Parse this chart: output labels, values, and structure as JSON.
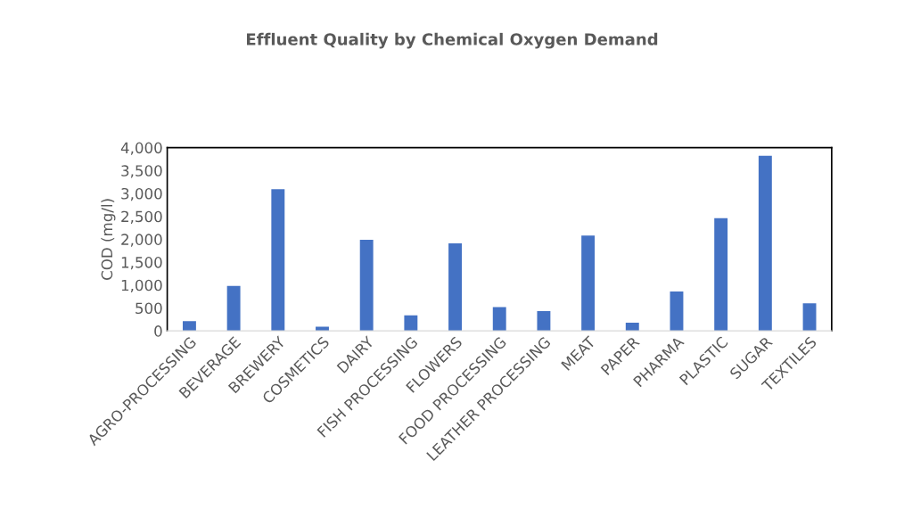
{
  "chart_data": {
    "type": "bar",
    "title": "Effluent Quality by Chemical Oxygen Demand",
    "ylabel": "COD (mg/l)",
    "categories": [
      "AGRO-PROCESSING",
      "BEVERAGE",
      "BREWERY",
      "COSMETICS",
      "DAIRY",
      "FISH PROCESSING",
      "FLOWERS",
      "FOOD PROCESSING",
      "LEATHER PROCESSING",
      "MEAT",
      "PAPER",
      "PHARMA",
      "PLASTIC",
      "SUGAR",
      "TEXTILES"
    ],
    "values": [
      210,
      980,
      3090,
      90,
      1990,
      340,
      1910,
      520,
      430,
      2080,
      180,
      860,
      2460,
      3820,
      600
    ],
    "color": "#4472c4",
    "ylim": [
      0,
      4000
    ],
    "yticks": [
      {
        "value": 0,
        "label": "0"
      },
      {
        "value": 500,
        "label": "500"
      },
      {
        "value": 1000,
        "label": "1,000"
      },
      {
        "value": 1500,
        "label": "1,500"
      },
      {
        "value": 2000,
        "label": "2,000"
      },
      {
        "value": 2500,
        "label": "2,500"
      },
      {
        "value": 3000,
        "label": "3,000"
      },
      {
        "value": 3500,
        "label": "3,500"
      },
      {
        "value": 4000,
        "label": "4,000"
      }
    ],
    "grid": false
  }
}
